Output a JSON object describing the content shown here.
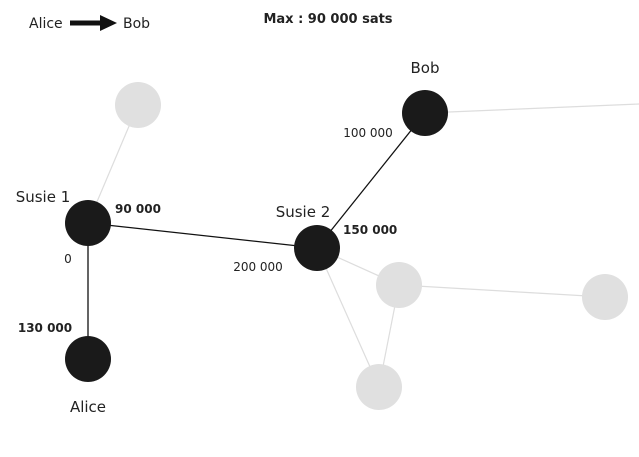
{
  "legend": {
    "from": "Alice",
    "to": "Bob"
  },
  "header": {
    "max_label": "Max : 90 000 sats"
  },
  "nodes": {
    "alice": "Alice",
    "susie1": "Susie 1",
    "susie2": "Susie 2",
    "bob": "Bob"
  },
  "balances": {
    "alice_out": "130 000",
    "susie1_in": "0",
    "susie1_out": "90 000",
    "susie2_in": "200 000",
    "susie2_out": "150 000",
    "bob_in": "100 000"
  },
  "colors": {
    "active_node": "#1a1a1a",
    "inactive_node": "#e0e0e0",
    "active_edge": "#111111",
    "inactive_edge": "#dddddd"
  }
}
